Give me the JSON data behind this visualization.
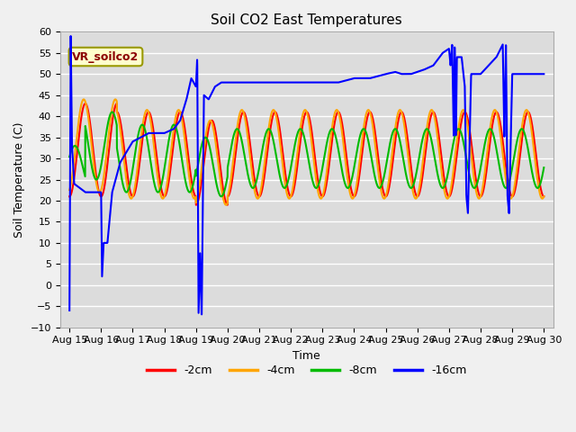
{
  "title": "Soil CO2 East Temperatures",
  "xlabel": "Time",
  "ylabel": "Soil Temperature (C)",
  "ylim": [
    -10,
    60
  ],
  "annotation": "VR_soilco2",
  "legend_labels": [
    "-2cm",
    "-4cm",
    "-8cm",
    "-16cm"
  ],
  "legend_colors": [
    "#ff0000",
    "#ffa500",
    "#00bb00",
    "#0000ff"
  ],
  "bg_color": "#dcdcdc",
  "fig_color": "#f0f0f0",
  "grid_color": "#ffffff",
  "x_tick_labels": [
    "Aug 15",
    "Aug 16",
    "Aug 17",
    "Aug 18",
    "Aug 19",
    "Aug 20",
    "Aug 21",
    "Aug 22",
    "Aug 23",
    "Aug 24",
    "Aug 25",
    "Aug 26",
    "Aug 27",
    "Aug 28",
    "Aug 29",
    "Aug 30"
  ],
  "line_width": 1.5,
  "title_fontsize": 11,
  "label_fontsize": 9,
  "tick_fontsize": 8,
  "legend_fontsize": 9
}
